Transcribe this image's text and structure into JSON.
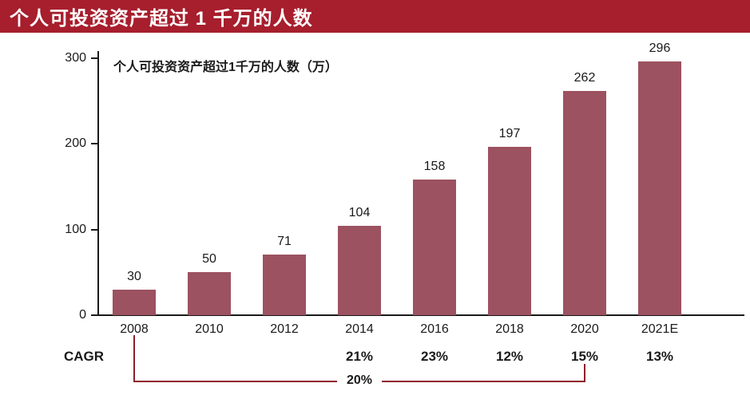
{
  "banner": {
    "title": "个人可投资资产超过 1 千万的人数",
    "background": "#a71e2d"
  },
  "chart_data": {
    "type": "bar",
    "title": "个人可投资资产超过1千万的人数（万）",
    "categories": [
      "2008",
      "2010",
      "2012",
      "2014",
      "2016",
      "2018",
      "2020",
      "2021E"
    ],
    "values": [
      30,
      50,
      71,
      104,
      158,
      197,
      262,
      296
    ],
    "xlabel": "",
    "ylabel": "",
    "ylim": [
      0,
      300
    ],
    "yticks": [
      0,
      100,
      200,
      300
    ],
    "bar_color": "#9c5260",
    "grid": false,
    "legend": "none"
  },
  "cagr": {
    "label": "CAGR",
    "values": [
      {
        "category": "2014",
        "value": "21%"
      },
      {
        "category": "2016",
        "value": "23%"
      },
      {
        "category": "2018",
        "value": "12%"
      },
      {
        "category": "2020",
        "value": "15%"
      },
      {
        "category": "2021E",
        "value": "13%"
      }
    ],
    "overall": {
      "value": "20%",
      "from": "2008",
      "to": "2020"
    }
  }
}
